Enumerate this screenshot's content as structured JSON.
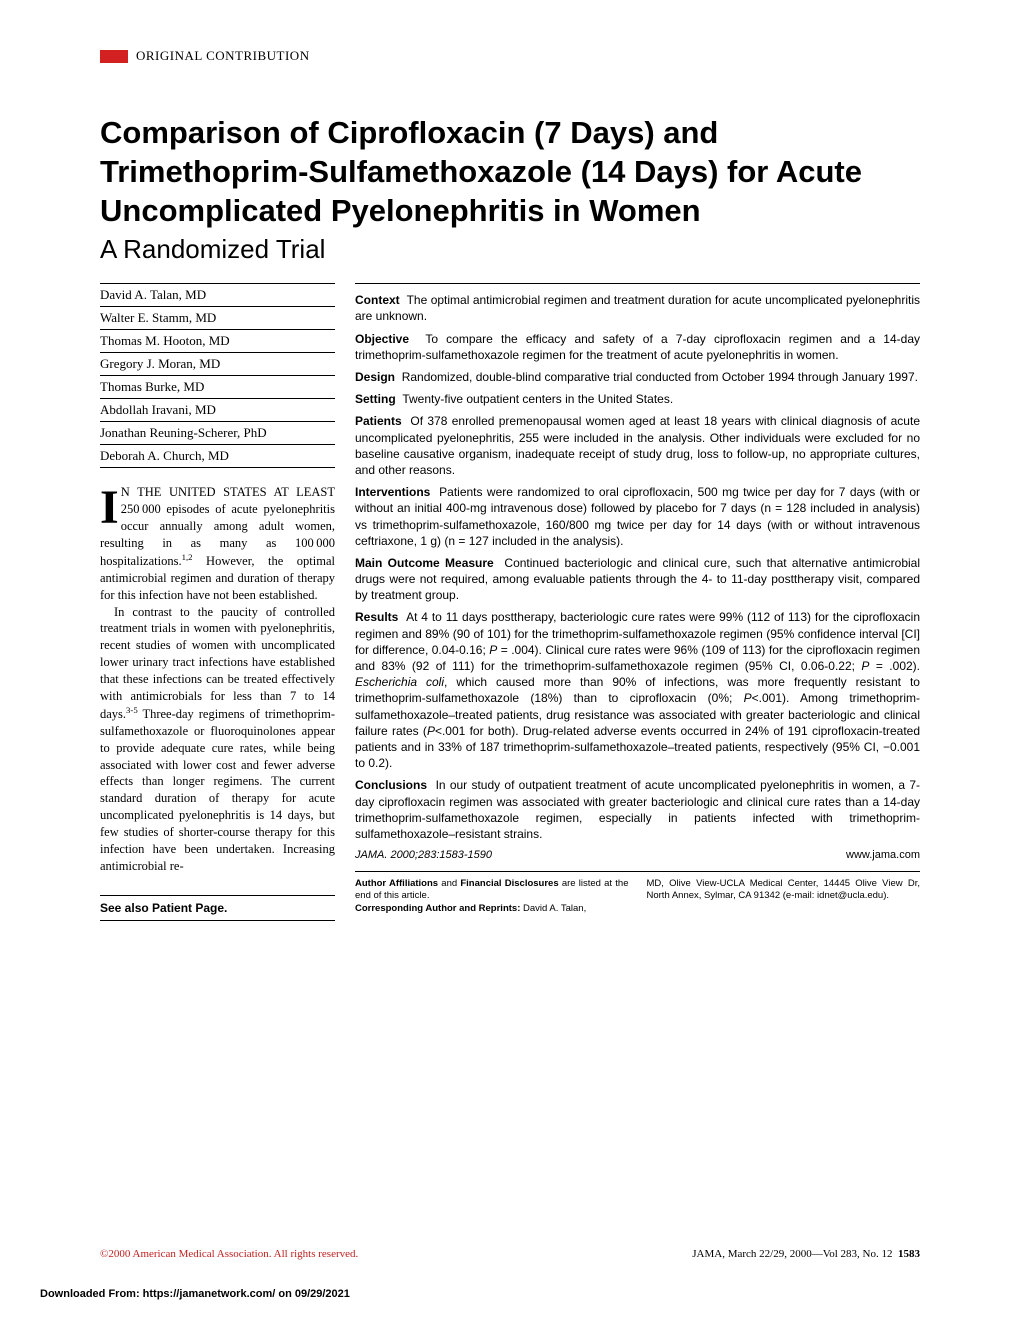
{
  "section_label": "ORIGINAL CONTRIBUTION",
  "title": "Comparison of Ciprofloxacin (7 Days) and Trimethoprim-Sulfamethoxazole (14 Days) for Acute Uncomplicated Pyelonephritis in Women",
  "subtitle": "A Randomized Trial",
  "authors": [
    "David A. Talan, MD",
    "Walter E. Stamm, MD",
    "Thomas M. Hooton, MD",
    "Gregory J. Moran, MD",
    "Thomas Burke, MD",
    "Abdollah Iravani, MD",
    "Jonathan Reuning-Scherer, PhD",
    "Deborah A. Church, MD"
  ],
  "body_dropcap": "I",
  "body_smallcaps": "N THE UNITED STATES AT LEAST",
  "body_p1_rest": " 250000 episodes of acute pyelonephritis occur annually among adult women, resulting in as many as 100000 hospitalizations.1,2 However, the optimal antimicrobial regimen and duration of therapy for this infection have not been established.",
  "body_p2": "In contrast to the paucity of controlled treatment trials in women with pyelonephritis, recent studies of women with uncomplicated lower urinary tract infections have established that these infections can be treated effectively with antimicrobials for less than 7 to 14 days.3-5 Three-day regimens of trimethoprim-sulfamethoxazole or fluoroquinolones appear to provide adequate cure rates, while being associated with lower cost and fewer adverse effects than longer regimens. The current standard duration of therapy for acute uncomplicated pyelonephritis is 14 days, but few studies of shorter-course therapy for this infection have been undertaken. Increasing antimicrobial re-",
  "see_also": "See also Patient Page.",
  "abstract": {
    "context": {
      "label": "Context",
      "text": "The optimal antimicrobial regimen and treatment duration for acute uncomplicated pyelonephritis are unknown."
    },
    "objective": {
      "label": "Objective",
      "text": "To compare the efficacy and safety of a 7-day ciprofloxacin regimen and a 14-day trimethoprim-sulfamethoxazole regimen for the treatment of acute pyelonephritis in women."
    },
    "design": {
      "label": "Design",
      "text": "Randomized, double-blind comparative trial conducted from October 1994 through January 1997."
    },
    "setting": {
      "label": "Setting",
      "text": "Twenty-five outpatient centers in the United States."
    },
    "patients": {
      "label": "Patients",
      "text": "Of 378 enrolled premenopausal women aged at least 18 years with clinical diagnosis of acute uncomplicated pyelonephritis, 255 were included in the analysis. Other individuals were excluded for no baseline causative organism, inadequate receipt of study drug, loss to follow-up, no appropriate cultures, and other reasons."
    },
    "interventions": {
      "label": "Interventions",
      "text": "Patients were randomized to oral ciprofloxacin, 500 mg twice per day for 7 days (with or without an initial 400-mg intravenous dose) followed by placebo for 7 days (n = 128 included in analysis) vs trimethoprim-sulfamethoxazole, 160/800 mg twice per day for 14 days (with or without intravenous ceftriaxone, 1 g) (n = 127 included in the analysis)."
    },
    "outcome": {
      "label": "Main Outcome Measure",
      "text": "Continued bacteriologic and clinical cure, such that alternative antimicrobial drugs were not required, among evaluable patients through the 4- to 11-day posttherapy visit, compared by treatment group."
    },
    "results": {
      "label": "Results",
      "text": "At 4 to 11 days posttherapy, bacteriologic cure rates were 99% (112 of 113) for the ciprofloxacin regimen and 89% (90 of 101) for the trimethoprim-sulfamethoxazole regimen (95% confidence interval [CI] for difference, 0.04-0.16; P = .004). Clinical cure rates were 96% (109 of 113) for the ciprofloxacin regimen and 83% (92 of 111) for the trimethoprim-sulfamethoxazole regimen (95% CI, 0.06-0.22; P = .002). Escherichia coli, which caused more than 90% of infections, was more frequently resistant to trimethoprim-sulfamethoxazole (18%) than to ciprofloxacin (0%; P<.001). Among trimethoprim-sulfamethoxazole–treated patients, drug resistance was associated with greater bacteriologic and clinical failure rates (P<.001 for both). Drug-related adverse events occurred in 24% of 191 ciprofloxacin-treated patients and in 33% of 187 trimethoprim-sulfamethoxazole–treated patients, respectively (95% CI, −0.001 to 0.2)."
    },
    "conclusions": {
      "label": "Conclusions",
      "text": "In our study of outpatient treatment of acute uncomplicated pyelonephritis in women, a 7-day ciprofloxacin regimen was associated with greater bacteriologic and clinical cure rates than a 14-day trimethoprim-sulfamethoxazole regimen, especially in patients infected with trimethoprim-sulfamethoxazole–resistant strains."
    },
    "citation": "JAMA. 2000;283:1583-1590",
    "url": "www.jama.com"
  },
  "affiliations": {
    "left": "Author Affiliations and Financial Disclosures are listed at the end of this article.\nCorresponding Author and Reprints: David A. Talan,",
    "right": "MD, Olive View-UCLA Medical Center, 14445 Olive View Dr, North Annex, Sylmar, CA 91342 (e-mail: idnet@ucla.edu)."
  },
  "footer": {
    "left": "©2000 American Medical Association. All rights reserved.",
    "right": "JAMA, March 22/29, 2000—Vol 283, No. 12",
    "page": "1583"
  },
  "download": "Downloaded From: https://jamanetwork.com/ on 09/29/2021",
  "colors": {
    "red": "#d32020",
    "text": "#000000",
    "bg": "#ffffff"
  }
}
